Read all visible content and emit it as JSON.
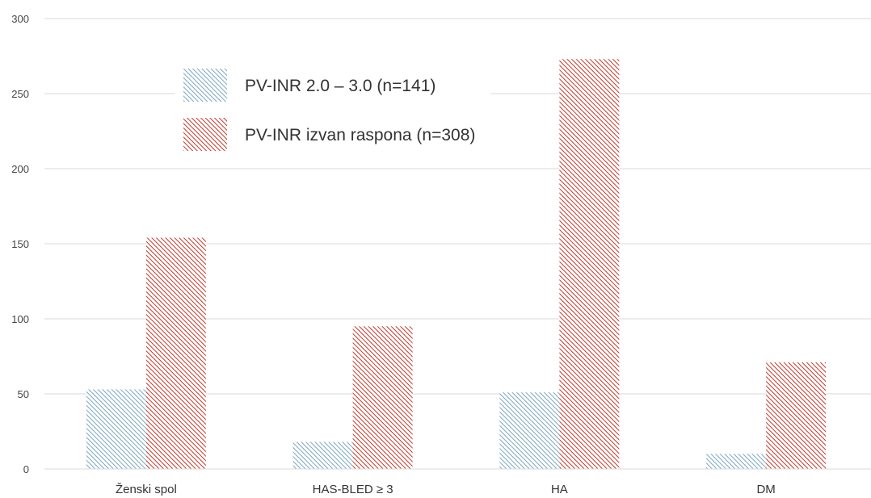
{
  "chart_data": {
    "type": "bar",
    "title": "",
    "xlabel": "",
    "ylabel": "",
    "categories": [
      "Ženski spol",
      "HAS-BLED ≥ 3",
      "HA",
      "DM"
    ],
    "series": [
      {
        "name": "PV-INR 2.0 – 3.0 (n=141)",
        "values": [
          53,
          18,
          51,
          10
        ],
        "color": "#7aa6c2"
      },
      {
        "name": "PV-INR izvan raspona (n=308)",
        "values": [
          154,
          95,
          273,
          71
        ],
        "color": "#c0392b"
      }
    ],
    "ylim": [
      0,
      300
    ],
    "yticks": [
      "0",
      "50",
      "100",
      "150",
      "200",
      "250",
      "300"
    ],
    "grid": true,
    "legend_position": "top-left"
  }
}
